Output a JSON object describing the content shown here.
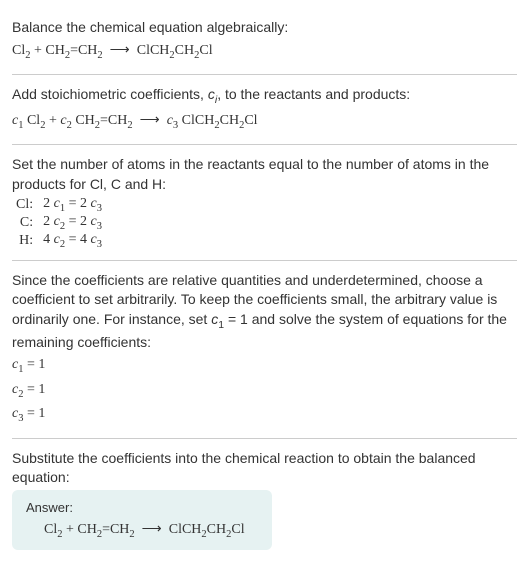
{
  "section1": {
    "title": "Balance the chemical equation algebraically:",
    "equation_html": "Cl<sub>2</sub> + CH<sub>2</sub>=CH<sub>2</sub> &nbsp;⟶&nbsp; ClCH<sub>2</sub>CH<sub>2</sub>Cl"
  },
  "section2": {
    "title_html": "Add stoichiometric coefficients, <span class=\"italic\">c<sub>i</sub></span>, to the reactants and products:",
    "equation_html": "<span class=\"italic\">c</span><sub>1</sub> Cl<sub>2</sub> + <span class=\"italic\">c</span><sub>2</sub> CH<sub>2</sub>=CH<sub>2</sub> &nbsp;⟶&nbsp; <span class=\"italic\">c</span><sub>3</sub> ClCH<sub>2</sub>CH<sub>2</sub>Cl"
  },
  "section3": {
    "title": "Set the number of atoms in the reactants equal to the number of atoms in the products for Cl, C and H:",
    "rows": [
      {
        "label": "Cl:",
        "eq_html": "2 <span class=\"italic\">c</span><sub>1</sub> = 2 <span class=\"italic\">c</span><sub>3</sub>"
      },
      {
        "label": "C:",
        "eq_html": "2 <span class=\"italic\">c</span><sub>2</sub> = 2 <span class=\"italic\">c</span><sub>3</sub>"
      },
      {
        "label": "H:",
        "eq_html": "4 <span class=\"italic\">c</span><sub>2</sub> = 4 <span class=\"italic\">c</span><sub>3</sub>"
      }
    ]
  },
  "section4": {
    "title_html": "Since the coefficients are relative quantities and underdetermined, choose a coefficient to set arbitrarily. To keep the coefficients small, the arbitrary value is ordinarily one. For instance, set <span class=\"italic\">c</span><sub>1</sub> = 1 and solve the system of equations for the remaining coefficients:",
    "rows": [
      {
        "eq_html": "<span class=\"italic\">c</span><sub>1</sub> = 1"
      },
      {
        "eq_html": "<span class=\"italic\">c</span><sub>2</sub> = 1"
      },
      {
        "eq_html": "<span class=\"italic\">c</span><sub>3</sub> = 1"
      }
    ]
  },
  "section5": {
    "title": "Substitute the coefficients into the chemical reaction to obtain the balanced equation:",
    "answer_label": "Answer:",
    "answer_equation_html": "Cl<sub>2</sub> + CH<sub>2</sub>=CH<sub>2</sub> &nbsp;⟶&nbsp; ClCH<sub>2</sub>CH<sub>2</sub>Cl"
  },
  "colors": {
    "divider": "#cccccc",
    "answer_bg": "#e6f2f2",
    "text": "#333333"
  }
}
